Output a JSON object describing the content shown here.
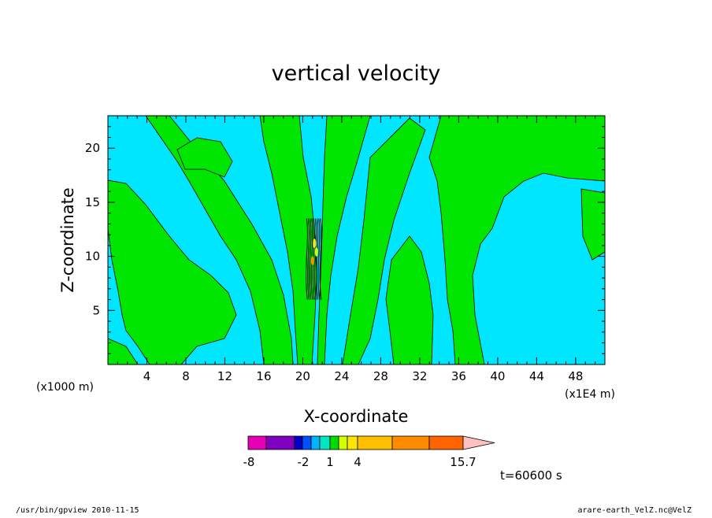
{
  "chart_data": {
    "type": "heatmap",
    "title": "vertical velocity",
    "xlabel": "X-coordinate",
    "ylabel": "Z-coordinate",
    "x_unit_left": "(x1000 m)",
    "x_unit_right": "(x1E4 m)",
    "xlim": [
      0,
      51
    ],
    "ylim": [
      0,
      23
    ],
    "x_ticks": [
      "4",
      "8",
      "12",
      "16",
      "20",
      "24",
      "28",
      "32",
      "36",
      "40",
      "44",
      "48"
    ],
    "y_ticks": [
      "5",
      "10",
      "15",
      "20"
    ],
    "colorbar": {
      "labels": [
        "-8",
        "-2",
        "1",
        "4",
        "15.7"
      ],
      "colors": [
        "#e600b4",
        "#8000c0",
        "#0000c8",
        "#0050ff",
        "#00b4ff",
        "#00e6c0",
        "#00dc00",
        "#d2ff00",
        "#ffe600",
        "#ffbe00",
        "#ff8c00",
        "#ff6400",
        "#ff1e00",
        "#ff8078",
        "#ffc0c0"
      ]
    },
    "time_label": "t=60600 s",
    "background_color": "#00e6ff",
    "positive_color": "#00e600"
  },
  "footer": {
    "left": "/usr/bin/gpview   2010-11-15",
    "right": "arare-earth_VelZ.nc@VelZ"
  }
}
